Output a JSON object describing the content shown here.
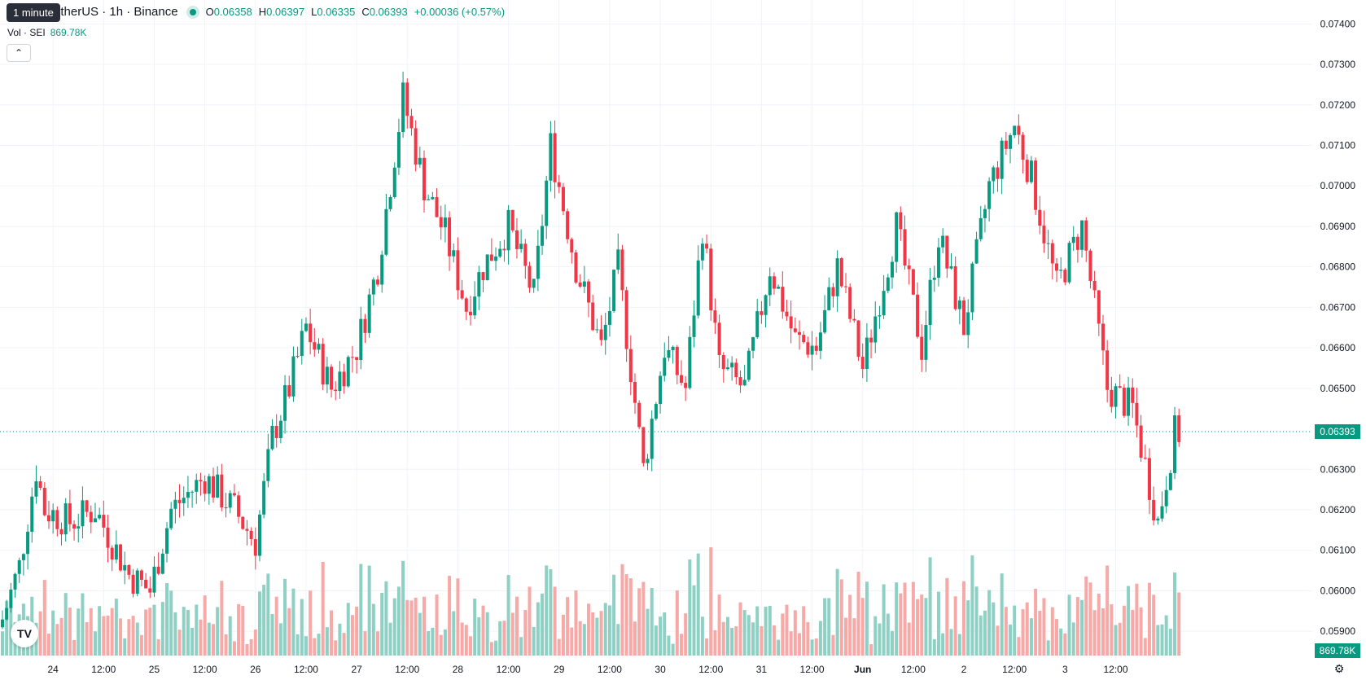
{
  "legend": {
    "symbol": "SEI / TetherUS · 1h · Binance",
    "tooltip": "1 minute",
    "visible_symbol": "etherUS · 1h · Binance",
    "o_label": "O",
    "o_value": "0.06358",
    "h_label": "H",
    "h_value": "0.06397",
    "l_label": "L",
    "l_value": "0.06335",
    "c_label": "C",
    "c_value": "0.06393",
    "change": "+0.00036 (+0.57%)",
    "vol_label": "Vol · SEI",
    "vol_value": "869.78K",
    "collapse_icon": "chevron-up-icon"
  },
  "price_tag": "0.06393",
  "vol_tag": "869.78K",
  "logo": "TV",
  "colors": {
    "up": "#089981",
    "down": "#F23645",
    "up_vol": "#8fd0c4",
    "down_vol": "#f7a9a7",
    "grid": "#f0f3fa"
  },
  "chart_data": {
    "type": "candlestick",
    "y_ticks": [
      "0.07400",
      "0.07300",
      "0.07200",
      "0.07100",
      "0.07000",
      "0.06900",
      "0.06800",
      "0.06700",
      "0.06600",
      "0.06500",
      "0.06300",
      "0.06200",
      "0.06100",
      "0.06000",
      "0.05900"
    ],
    "x_ticks": [
      "24",
      "12:00",
      "25",
      "12:00",
      "26",
      "12:00",
      "27",
      "12:00",
      "28",
      "12:00",
      "29",
      "12:00",
      "30",
      "12:00",
      "31",
      "12:00",
      "Jun",
      "12:00",
      "2",
      "12:00",
      "3",
      "12:00"
    ],
    "ylim": [
      0.0584,
      0.0743
    ],
    "last_price": 0.06393,
    "anchors": [
      [
        0,
        0.0593
      ],
      [
        4,
        0.0606
      ],
      [
        8,
        0.063
      ],
      [
        10,
        0.062
      ],
      [
        16,
        0.0617
      ],
      [
        22,
        0.062
      ],
      [
        30,
        0.0604
      ],
      [
        35,
        0.06
      ],
      [
        40,
        0.062
      ],
      [
        48,
        0.0628
      ],
      [
        55,
        0.062
      ],
      [
        60,
        0.0612
      ],
      [
        64,
        0.0638
      ],
      [
        68,
        0.065
      ],
      [
        72,
        0.0665
      ],
      [
        78,
        0.065
      ],
      [
        84,
        0.066
      ],
      [
        89,
        0.068
      ],
      [
        95,
        0.0722
      ],
      [
        100,
        0.07
      ],
      [
        105,
        0.0688
      ],
      [
        110,
        0.067
      ],
      [
        114,
        0.068
      ],
      [
        120,
        0.069
      ],
      [
        126,
        0.0673
      ],
      [
        130,
        0.071
      ],
      [
        136,
        0.068
      ],
      [
        142,
        0.066
      ],
      [
        146,
        0.068
      ],
      [
        152,
        0.063
      ],
      [
        157,
        0.066
      ],
      [
        162,
        0.065
      ],
      [
        166,
        0.069
      ],
      [
        170,
        0.0655
      ],
      [
        176,
        0.065
      ],
      [
        182,
        0.068
      ],
      [
        188,
        0.0662
      ],
      [
        193,
        0.066
      ],
      [
        198,
        0.068
      ],
      [
        204,
        0.0655
      ],
      [
        212,
        0.069
      ],
      [
        218,
        0.066
      ],
      [
        222,
        0.0688
      ],
      [
        228,
        0.0665
      ],
      [
        234,
        0.07
      ],
      [
        240,
        0.0715
      ],
      [
        244,
        0.0702
      ],
      [
        250,
        0.0675
      ],
      [
        256,
        0.069
      ],
      [
        262,
        0.065
      ],
      [
        268,
        0.0645
      ],
      [
        274,
        0.0617
      ],
      [
        278,
        0.0639
      ]
    ],
    "x_label_candle_index": [
      12,
      24,
      36,
      48,
      60,
      72,
      84,
      96,
      108,
      120,
      132,
      144,
      156,
      168,
      180,
      192,
      204,
      216,
      228,
      240,
      252,
      264
    ],
    "candle_count": 280
  }
}
